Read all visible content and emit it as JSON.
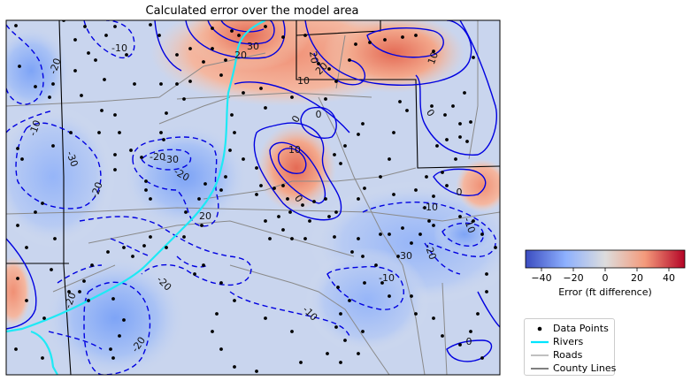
{
  "title": "Calculated error over the model area",
  "colorbar": {
    "label": "Error (ft difference)",
    "min": -50,
    "max": 50,
    "ticks": [
      "−40",
      "−20",
      "0",
      "20",
      "40"
    ],
    "colors": [
      "#3b4cc0",
      "#8db0fe",
      "#dddddd",
      "#f49a7b",
      "#b40426"
    ]
  },
  "contour_labels": [
    "-10",
    "-20",
    "-10",
    "30",
    "20",
    "10",
    "20",
    "20",
    "10",
    "0",
    "0",
    "-20",
    "-30",
    "-30",
    "-20",
    "-20",
    "20",
    "10",
    "0",
    "-10",
    "0",
    "0",
    "-10",
    "-20",
    "-30",
    "-20",
    "-10",
    "-20",
    "-10",
    "-20",
    "0"
  ],
  "legend": {
    "items": [
      {
        "label": "Data Points",
        "color": "#000000",
        "kind": "dot"
      },
      {
        "label": "Rivers",
        "color": "#00e5ff",
        "kind": "thick-line"
      },
      {
        "label": "Roads",
        "color": "#808080",
        "kind": "thin-line"
      },
      {
        "label": "County Lines",
        "color": "#000000",
        "kind": "line"
      }
    ]
  }
}
